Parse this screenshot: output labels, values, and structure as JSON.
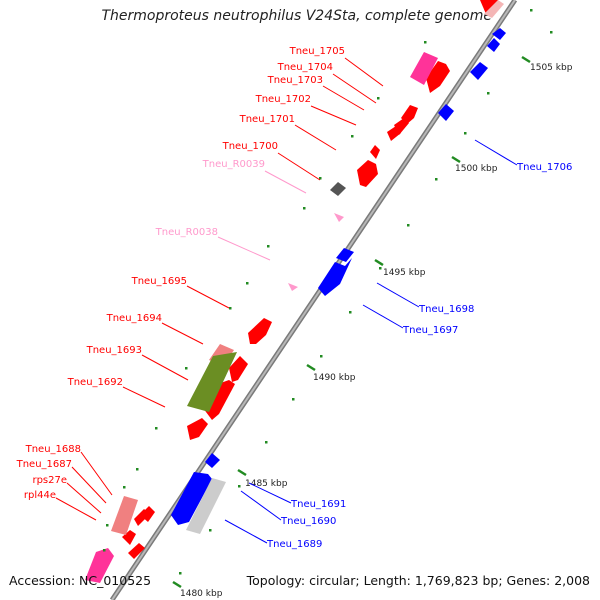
{
  "title": "Thermoproteus neutrophilus V24Sta, complete genome",
  "footer": {
    "accession": "Accession: NC_010525",
    "topology": "Topology: circular; Length: 1,769,823 bp; Genes: 2,008"
  },
  "colors": {
    "forward_cds": "#ff0000",
    "reverse_cds": "#0000ff",
    "pseudo_or_rrna": "#ff3399",
    "trna": "#ff99cc",
    "light": "#f08080",
    "olive": "#6b8e23",
    "grey": "#cccccc",
    "dark": "#555555",
    "tick": "#228b22",
    "backbone": "#999999"
  },
  "scale_labels": [
    {
      "key": "1505",
      "text": "1505 kbp"
    },
    {
      "key": "1500",
      "text": "1500 kbp"
    },
    {
      "key": "1495",
      "text": "1495 kbp"
    },
    {
      "key": "1490",
      "text": "1490 kbp"
    },
    {
      "key": "1485",
      "text": "1485 kbp"
    },
    {
      "key": "1480",
      "text": "1480 kbp"
    }
  ],
  "gene_labels": [
    {
      "key": "Tneu_1705",
      "text": "Tneu_1705",
      "strand": "forward"
    },
    {
      "key": "Tneu_1704",
      "text": "Tneu_1704",
      "strand": "forward"
    },
    {
      "key": "Tneu_1703",
      "text": "Tneu_1703",
      "strand": "forward"
    },
    {
      "key": "Tneu_1702",
      "text": "Tneu_1702",
      "strand": "forward"
    },
    {
      "key": "Tneu_1701",
      "text": "Tneu_1701",
      "strand": "forward"
    },
    {
      "key": "Tneu_1700",
      "text": "Tneu_1700",
      "strand": "forward"
    },
    {
      "key": "Tneu_R0039",
      "text": "Tneu_R0039",
      "strand": "trna"
    },
    {
      "key": "Tneu_R0038",
      "text": "Tneu_R0038",
      "strand": "trna"
    },
    {
      "key": "Tneu_1695",
      "text": "Tneu_1695",
      "strand": "forward"
    },
    {
      "key": "Tneu_1694",
      "text": "Tneu_1694",
      "strand": "forward"
    },
    {
      "key": "Tneu_1693",
      "text": "Tneu_1693",
      "strand": "forward"
    },
    {
      "key": "Tneu_1692",
      "text": "Tneu_1692",
      "strand": "forward"
    },
    {
      "key": "Tneu_1688",
      "text": "Tneu_1688",
      "strand": "forward"
    },
    {
      "key": "Tneu_1687",
      "text": "Tneu_1687",
      "strand": "forward"
    },
    {
      "key": "rps27e",
      "text": "rps27e",
      "strand": "forward"
    },
    {
      "key": "rpl44e",
      "text": "rpl44e",
      "strand": "forward"
    },
    {
      "key": "Tneu_1706",
      "text": "Tneu_1706",
      "strand": "reverse"
    },
    {
      "key": "Tneu_1698",
      "text": "Tneu_1698",
      "strand": "reverse"
    },
    {
      "key": "Tneu_1697",
      "text": "Tneu_1697",
      "strand": "reverse"
    },
    {
      "key": "Tneu_1691",
      "text": "Tneu_1691",
      "strand": "reverse"
    },
    {
      "key": "Tneu_1690",
      "text": "Tneu_1690",
      "strand": "reverse"
    },
    {
      "key": "Tneu_1689",
      "text": "Tneu_1689",
      "strand": "reverse"
    }
  ]
}
